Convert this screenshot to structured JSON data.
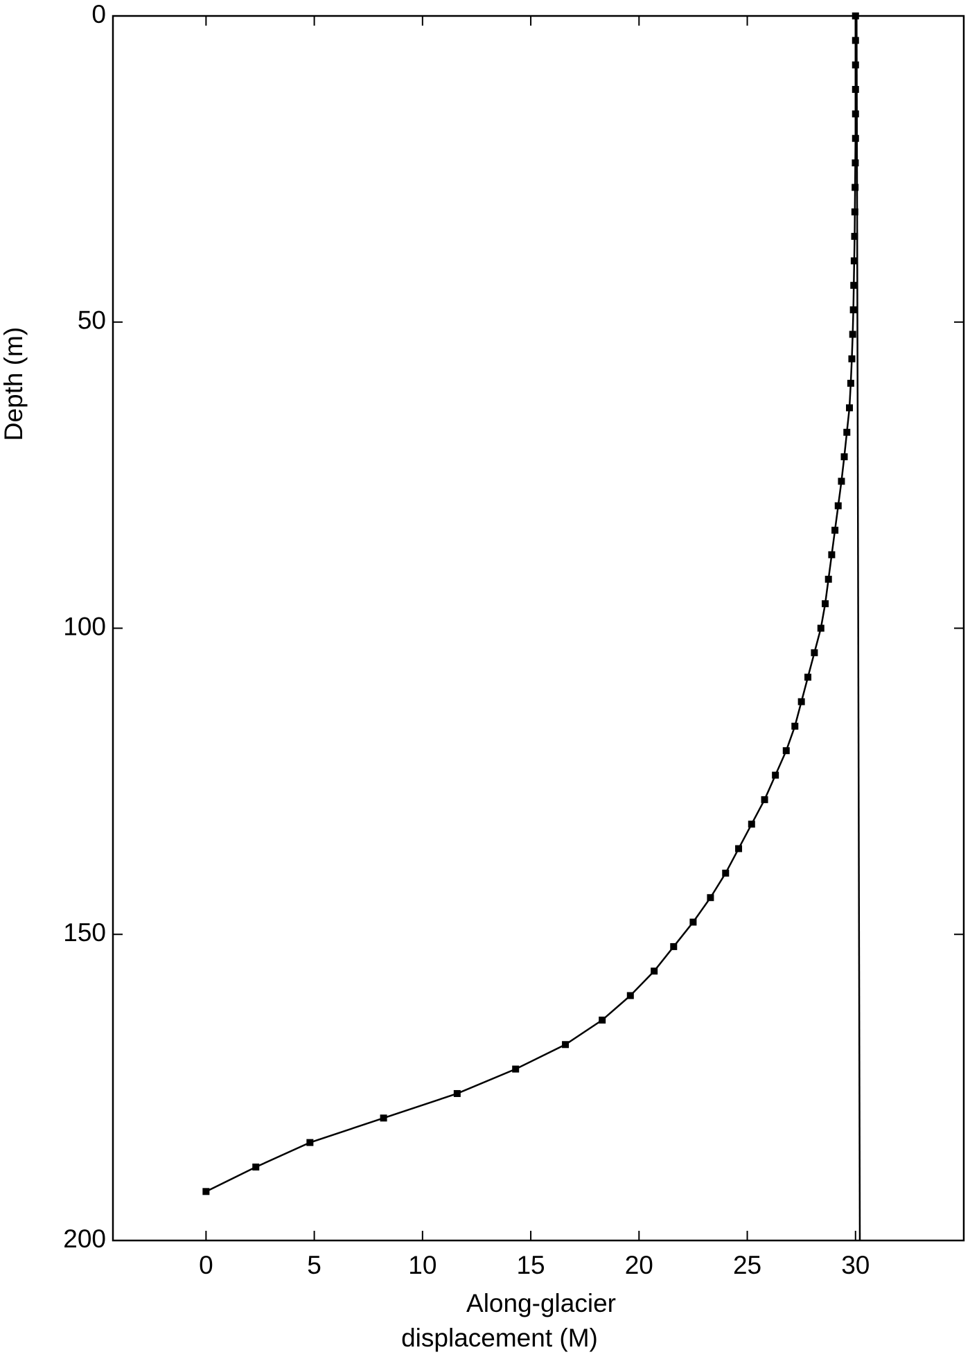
{
  "chart_data": {
    "type": "line",
    "x_label": [
      "Along-glacier",
      "displacement (M)"
    ],
    "y_label": "Depth (m)",
    "xlim": [
      -4.3,
      35
    ],
    "ylim": [
      0,
      200
    ],
    "y_inverted": true,
    "xticks": [
      0,
      5,
      10,
      15,
      20,
      25,
      30
    ],
    "yticks": [
      0,
      50,
      100,
      150,
      200
    ],
    "series": [
      {
        "color": "#000000",
        "marker": "square",
        "x": [
          30.0,
          30.0,
          30.0,
          30.0,
          30.0,
          30.0,
          29.99,
          29.98,
          29.97,
          29.96,
          29.94,
          29.92,
          29.9,
          29.87,
          29.83,
          29.78,
          29.72,
          29.6,
          29.48,
          29.35,
          29.2,
          29.05,
          28.9,
          28.75,
          28.6,
          28.4,
          28.1,
          27.8,
          27.5,
          27.2,
          26.8,
          26.3,
          25.8,
          25.2,
          24.6,
          24.0,
          23.3,
          22.5,
          21.6,
          20.7,
          19.6,
          18.3,
          16.6,
          14.3,
          11.6,
          8.2,
          4.8,
          2.3,
          0
        ],
        "values": [
          0,
          4,
          8,
          12,
          16,
          20,
          24,
          28,
          32,
          36,
          40,
          44,
          48,
          52,
          56,
          60,
          64,
          68,
          72,
          76,
          80,
          84,
          88,
          92,
          96,
          100,
          104,
          108,
          112,
          116,
          120,
          124,
          128,
          132,
          136,
          140,
          144,
          148,
          152,
          156,
          160,
          164,
          168,
          172,
          176,
          180,
          184,
          188,
          192
        ]
      },
      {
        "color": "#000000",
        "marker": "none",
        "x": [
          30.05,
          30.2
        ],
        "values": [
          0,
          200
        ]
      }
    ]
  }
}
